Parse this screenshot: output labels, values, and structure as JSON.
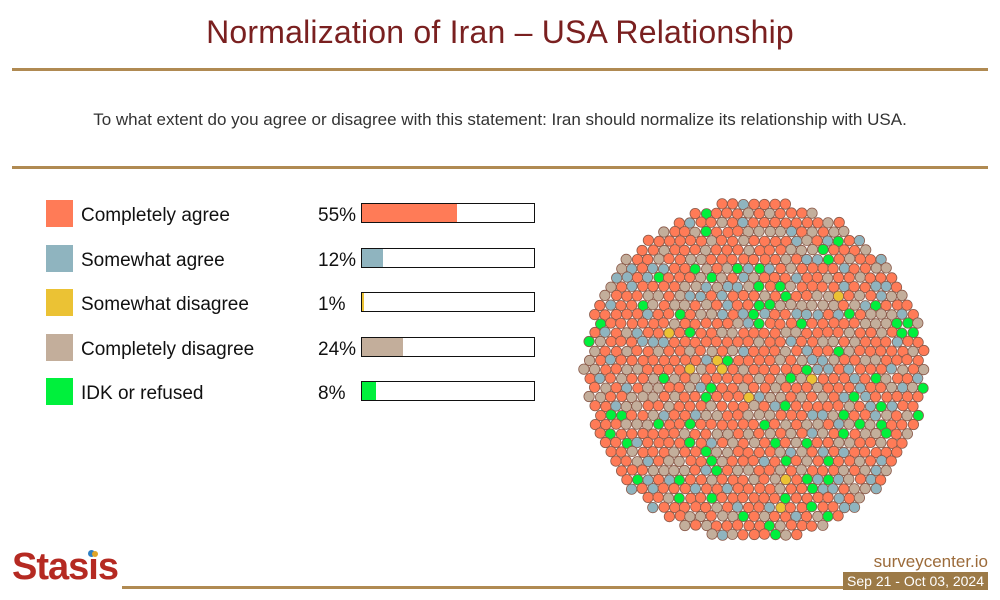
{
  "header": {
    "title": "Normalization of Iran – USA Relationship",
    "question": "To what extent do you agree or disagree with this statement: Iran should normalize its relationship with USA."
  },
  "chart_data": {
    "type": "bar",
    "title": "Normalization of Iran – USA Relationship",
    "categories": [
      "Completely agree",
      "Somewhat agree",
      "Somewhat disagree",
      "Completely disagree",
      "IDK or refused"
    ],
    "values": [
      55,
      12,
      1,
      24,
      8
    ],
    "value_labels": [
      "55%",
      "12%",
      "1%",
      "24%",
      "8%"
    ],
    "colors": [
      "#ff7b57",
      "#8fb4bf",
      "#ebc234",
      "#c3ae9b",
      "#00f03c"
    ],
    "ylim": [
      0,
      100
    ],
    "grid": false
  },
  "footer": {
    "logo_text": "Stasis",
    "site": "surveycenter.io",
    "date_range": "Sep 21 - Oct 03, 2024"
  }
}
